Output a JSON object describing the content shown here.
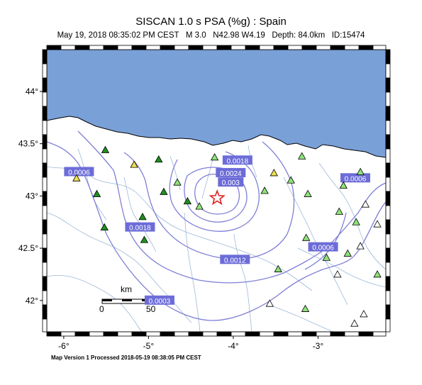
{
  "title": "SISCAN 1.0 s PSA (%g) : Spain",
  "subtitle": "May 19, 2018 08:35:02 PM CEST   M 3.0   N42.98 W4.19   Depth: 84.0km   ID:15474",
  "footer": "Map Version 1 Processed 2018-05-19 08:38:05 PM CEST",
  "map": {
    "lon_range": [
      -6.2,
      -2.2
    ],
    "lat_range": [
      41.7,
      44.4
    ],
    "x_ticks": [
      {
        "label": "-6°",
        "value": -6
      },
      {
        "label": "-5°",
        "value": -5
      },
      {
        "label": "-4°",
        "value": -4
      },
      {
        "label": "-3°",
        "value": -3
      }
    ],
    "y_ticks": [
      {
        "label": "44°",
        "value": 44
      },
      {
        "label": "43.5°",
        "value": 43.5
      },
      {
        "label": "43°",
        "value": 43
      },
      {
        "label": "42.5°",
        "value": 42.5
      },
      {
        "label": "42°",
        "value": 42
      }
    ],
    "epicenter": {
      "lon": -4.19,
      "lat": 42.98,
      "icon": "star-icon"
    },
    "scale_bar": {
      "unit": "km",
      "label_start": "0",
      "label_end": "50"
    },
    "colors": {
      "sea": "#7aa0d8",
      "land": "#ffffff",
      "rivers": "#9db8d8",
      "contours": "#7f7fd6",
      "contour_label_bg": "#6c6cd8",
      "epicenter": "#e02020",
      "station_dark": "#1f8f1f",
      "station_light": "#8fe37a",
      "station_yellow": "#f0e050",
      "station_white": "#ffffff"
    },
    "contour_labels": [
      {
        "text": "0.0006",
        "lon": -5.82,
        "lat": 43.23
      },
      {
        "text": "0.0018",
        "lon": -3.95,
        "lat": 43.34
      },
      {
        "text": "0.0024",
        "lon": -4.03,
        "lat": 43.22
      },
      {
        "text": "0.003",
        "lon": -4.03,
        "lat": 43.13
      },
      {
        "text": "0.0006",
        "lon": -2.56,
        "lat": 43.17
      },
      {
        "text": "0.0018",
        "lon": -5.1,
        "lat": 42.7
      },
      {
        "text": "0.0006",
        "lon": -2.94,
        "lat": 42.51
      },
      {
        "text": "0.0012",
        "lon": -3.98,
        "lat": 42.39
      },
      {
        "text": "0.0003",
        "lon": -4.87,
        "lat": 42.0
      }
    ],
    "stations": [
      {
        "lon": -5.51,
        "lat": 43.44,
        "type": "dark"
      },
      {
        "lon": -5.61,
        "lat": 43.02,
        "type": "dark"
      },
      {
        "lon": -5.52,
        "lat": 42.7,
        "type": "dark"
      },
      {
        "lon": -5.07,
        "lat": 42.8,
        "type": "dark"
      },
      {
        "lon": -5.05,
        "lat": 42.58,
        "type": "dark"
      },
      {
        "lon": -4.88,
        "lat": 43.35,
        "type": "dark"
      },
      {
        "lon": -4.82,
        "lat": 43.04,
        "type": "dark"
      },
      {
        "lon": -4.54,
        "lat": 42.95,
        "type": "dark"
      },
      {
        "lon": -4.22,
        "lat": 43.37,
        "type": "light"
      },
      {
        "lon": -4.66,
        "lat": 43.13,
        "type": "light"
      },
      {
        "lon": -4.4,
        "lat": 42.9,
        "type": "light"
      },
      {
        "lon": -3.63,
        "lat": 43.05,
        "type": "light"
      },
      {
        "lon": -3.32,
        "lat": 43.15,
        "type": "light"
      },
      {
        "lon": -3.12,
        "lat": 43.02,
        "type": "light"
      },
      {
        "lon": -2.7,
        "lat": 43.1,
        "type": "light"
      },
      {
        "lon": -3.19,
        "lat": 43.38,
        "type": "light"
      },
      {
        "lon": -2.5,
        "lat": 43.23,
        "type": "light"
      },
      {
        "lon": -2.75,
        "lat": 42.85,
        "type": "light"
      },
      {
        "lon": -2.55,
        "lat": 42.75,
        "type": "light"
      },
      {
        "lon": -2.9,
        "lat": 42.41,
        "type": "light"
      },
      {
        "lon": -3.47,
        "lat": 42.3,
        "type": "light"
      },
      {
        "lon": -3.14,
        "lat": 42.6,
        "type": "light"
      },
      {
        "lon": -2.65,
        "lat": 42.45,
        "type": "light"
      },
      {
        "lon": -2.3,
        "lat": 42.25,
        "type": "light"
      },
      {
        "lon": -3.15,
        "lat": 41.92,
        "type": "light"
      },
      {
        "lon": -5.17,
        "lat": 43.3,
        "type": "yellow"
      },
      {
        "lon": -5.85,
        "lat": 43.17,
        "type": "yellow"
      },
      {
        "lon": -3.52,
        "lat": 43.22,
        "type": "yellow"
      },
      {
        "lon": -2.44,
        "lat": 42.92,
        "type": "white"
      },
      {
        "lon": -2.3,
        "lat": 42.73,
        "type": "white"
      },
      {
        "lon": -2.5,
        "lat": 42.52,
        "type": "white"
      },
      {
        "lon": -2.77,
        "lat": 42.25,
        "type": "white"
      },
      {
        "lon": -3.57,
        "lat": 41.97,
        "type": "white"
      },
      {
        "lon": -2.46,
        "lat": 41.87,
        "type": "white"
      },
      {
        "lon": -2.57,
        "lat": 41.78,
        "type": "white"
      }
    ]
  }
}
